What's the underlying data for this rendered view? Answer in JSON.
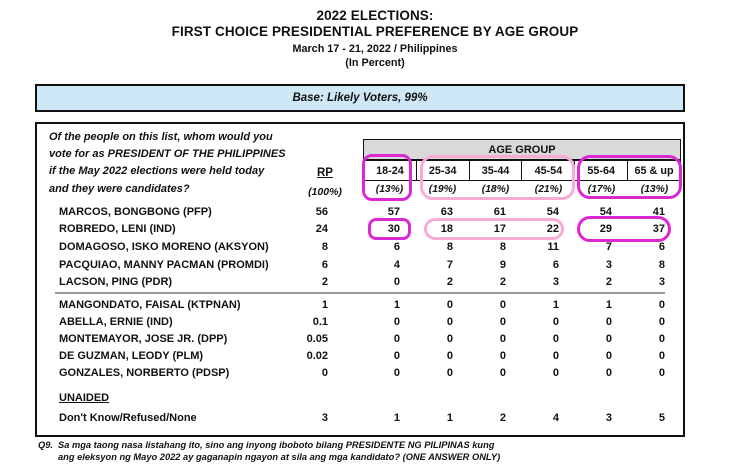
{
  "title": {
    "line1": "2022 ELECTIONS:",
    "line2": "FIRST CHOICE PRESIDENTIAL PREFERENCE BY AGE GROUP",
    "line3": "March 17 - 21, 2022 / Philippines",
    "line4": "(In Percent)"
  },
  "base_banner": "Base: Likely Voters, 99%",
  "question": {
    "lines": [
      "Of the people on this list, whom would you",
      "vote for as PRESIDENT OF THE PHILIPPINES",
      "if the May 2022 elections were held today",
      "and they were candidates?"
    ]
  },
  "columns": {
    "rp_label": "RP",
    "rp_pct": "(100%)",
    "age_group_label": "AGE GROUP",
    "age_cols": [
      {
        "label": "18-24",
        "pct": "(13%)"
      },
      {
        "label": "25-34",
        "pct": "(19%)"
      },
      {
        "label": "35-44",
        "pct": "(18%)"
      },
      {
        "label": "45-54",
        "pct": "(21%)"
      },
      {
        "label": "55-64",
        "pct": "(17%)"
      },
      {
        "label": "65 & up",
        "pct": "(13%)"
      }
    ]
  },
  "candidates": [
    {
      "name": "MARCOS, BONGBONG (PFP)",
      "rp": "56",
      "values": [
        "57",
        "63",
        "61",
        "54",
        "54",
        "41"
      ]
    },
    {
      "name": "ROBREDO, LENI (IND)",
      "rp": "24",
      "values": [
        "30",
        "18",
        "17",
        "22",
        "29",
        "37"
      ]
    },
    {
      "name": "DOMAGOSO, ISKO MORENO (AKSYON)",
      "rp": "8",
      "values": [
        "6",
        "8",
        "8",
        "11",
        "7",
        "6"
      ]
    },
    {
      "name": "PACQUIAO, MANNY PACMAN (PROMDI)",
      "rp": "6",
      "values": [
        "4",
        "7",
        "9",
        "6",
        "3",
        "8"
      ]
    },
    {
      "name": "LACSON, PING (PDR)",
      "rp": "2",
      "values": [
        "0",
        "2",
        "2",
        "3",
        "2",
        "3"
      ]
    },
    {
      "name": "MANGONDATO, FAISAL (KTPNAN)",
      "rp": "1",
      "values": [
        "1",
        "0",
        "0",
        "1",
        "1",
        "0"
      ]
    },
    {
      "name": "ABELLA, ERNIE (IND)",
      "rp": "0.1",
      "values": [
        "0",
        "0",
        "0",
        "0",
        "0",
        "0"
      ]
    },
    {
      "name": "MONTEMAYOR, JOSE JR. (DPP)",
      "rp": "0.05",
      "values": [
        "0",
        "0",
        "0",
        "0",
        "0",
        "0"
      ]
    },
    {
      "name": "DE GUZMAN, LEODY (PLM)",
      "rp": "0.02",
      "values": [
        "0",
        "0",
        "0",
        "0",
        "0",
        "0"
      ]
    },
    {
      "name": "GONZALES, NORBERTO (PDSP)",
      "rp": "0",
      "values": [
        "0",
        "0",
        "0",
        "0",
        "0",
        "0"
      ]
    }
  ],
  "unaided_label": "UNAIDED",
  "dk_row": {
    "label": "Don't Know/Refused/None",
    "rp": "3",
    "values": [
      "1",
      "1",
      "2",
      "4",
      "3",
      "5"
    ]
  },
  "footnote": {
    "prefix": "Q9.",
    "line1": "Sa mga taong nasa listahang ito, sino ang inyong iboboto bilang  PRESIDENTE NG PILIPINAS kung",
    "line2": "ang eleksyon ng Mayo 2022 ay gaganapin ngayon at sila ang mga kandidato? (ONE ANSWER ONLY)"
  },
  "colors": {
    "magenta_highlight": "#db28d2",
    "pink_highlight": "#f8abd7",
    "banner_blue": "#cfe8f8",
    "band_gray": "#d9d9d9",
    "separator_gray": "#999999",
    "ink": "#111111"
  },
  "chart_data": {
    "type": "table",
    "title": "2022 ELECTIONS: FIRST CHOICE PRESIDENTIAL PREFERENCE BY AGE GROUP",
    "subtitle": "March 17 - 21, 2022 / Philippines (In Percent)",
    "base": "Likely Voters, 99%",
    "columns": [
      "RP (100%)",
      "18-24 (13%)",
      "25-34 (19%)",
      "35-44 (18%)",
      "45-54 (21%)",
      "55-64 (17%)",
      "65 & up (13%)"
    ],
    "rows": [
      [
        "MARCOS, BONGBONG (PFP)",
        56,
        57,
        63,
        61,
        54,
        54,
        41
      ],
      [
        "ROBREDO, LENI (IND)",
        24,
        30,
        18,
        17,
        22,
        29,
        37
      ],
      [
        "DOMAGOSO, ISKO MORENO (AKSYON)",
        8,
        6,
        8,
        8,
        11,
        7,
        6
      ],
      [
        "PACQUIAO, MANNY PACMAN (PROMDI)",
        6,
        4,
        7,
        9,
        6,
        3,
        8
      ],
      [
        "LACSON, PING (PDR)",
        2,
        0,
        2,
        2,
        3,
        2,
        3
      ],
      [
        "MANGONDATO, FAISAL (KTPNAN)",
        1,
        1,
        0,
        0,
        1,
        1,
        0
      ],
      [
        "ABELLA, ERNIE (IND)",
        0.1,
        0,
        0,
        0,
        0,
        0,
        0
      ],
      [
        "MONTEMAYOR, JOSE JR. (DPP)",
        0.05,
        0,
        0,
        0,
        0,
        0,
        0
      ],
      [
        "DE GUZMAN, LEODY (PLM)",
        0.02,
        0,
        0,
        0,
        0,
        0,
        0
      ],
      [
        "GONZALES, NORBERTO (PDSP)",
        0,
        0,
        0,
        0,
        0,
        0,
        0
      ],
      [
        "Don't Know/Refused/None",
        3,
        1,
        1,
        2,
        4,
        3,
        5
      ]
    ]
  }
}
